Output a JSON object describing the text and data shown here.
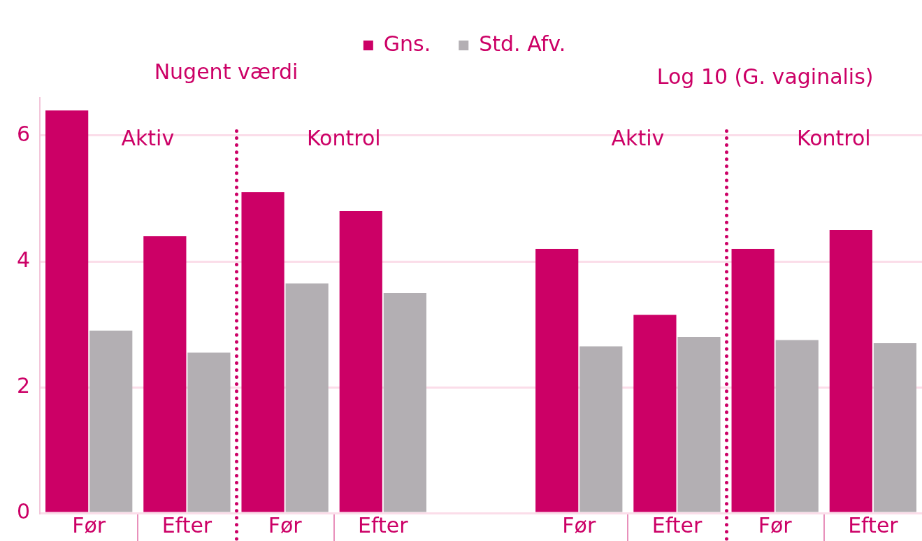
{
  "chart_data": {
    "type": "bar",
    "categories": [
      "Før",
      "Efter",
      "Før",
      "Efter",
      null,
      "Før",
      "Efter",
      "Før",
      "Efter"
    ],
    "series": [
      {
        "name": "Gns.",
        "color": "#cc0066",
        "values": [
          6.4,
          4.4,
          5.1,
          4.8,
          null,
          4.2,
          3.15,
          4.2,
          4.5
        ]
      },
      {
        "name": "Std. Afv.",
        "color": "#b3afb3",
        "values": [
          2.9,
          2.55,
          3.65,
          3.5,
          null,
          2.65,
          2.8,
          2.75,
          2.7
        ]
      }
    ],
    "ylim": [
      0,
      6.6
    ],
    "yticks": [
      0,
      2,
      4,
      6
    ],
    "grid": "y",
    "legend": "top",
    "annotations": [
      "Nugent værdi",
      "Log 10 (G. vaginalis)",
      "Aktiv",
      "Kontrol",
      "Aktiv",
      "Kontrol"
    ]
  }
}
